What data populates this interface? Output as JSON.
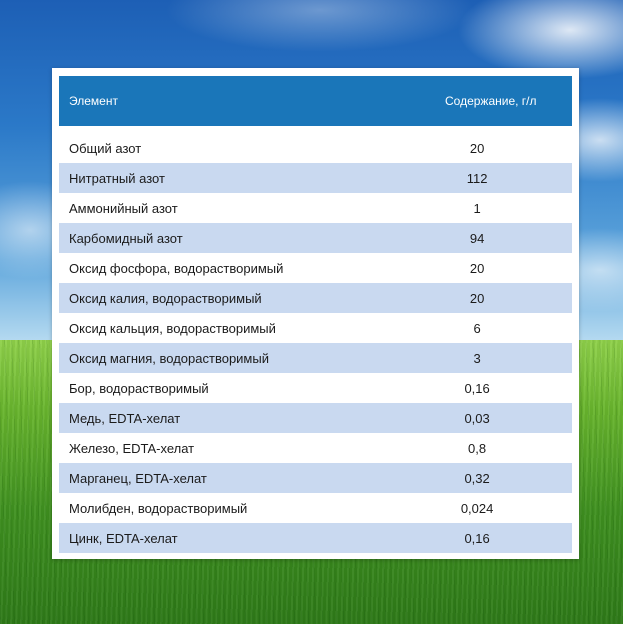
{
  "table": {
    "headers": {
      "element": "Элемент",
      "content": "Содержание, г/л"
    },
    "rows": [
      {
        "name": "Общий азот",
        "value": "20"
      },
      {
        "name": "Нитратный азот",
        "value": "112"
      },
      {
        "name": "Аммонийный азот",
        "value": "1"
      },
      {
        "name": "Карбомидный азот",
        "value": "94"
      },
      {
        "name": "Оксид фосфора, водорастворимый",
        "value": "20"
      },
      {
        "name": "Оксид калия, водорастворимый",
        "value": "20"
      },
      {
        "name": "Оксид кальция, водорастворимый",
        "value": "6"
      },
      {
        "name": "Оксид магния,  водорастворимый",
        "value": "3"
      },
      {
        "name": "Бор, водорастворимый",
        "value": "0,16"
      },
      {
        "name": "Медь, EDTA-хелат",
        "value": "0,03"
      },
      {
        "name": "Железо, EDTA-хелат",
        "value": "0,8"
      },
      {
        "name": "Марганец, EDTA-хелат",
        "value": "0,32"
      },
      {
        "name": "Молибден, водорастворимый",
        "value": "0,024"
      },
      {
        "name": "Цинк, EDTA-хелат",
        "value": "0,16"
      }
    ]
  },
  "colors": {
    "header_bg": "#1a76b9",
    "alt_row_bg": "#c9d9f0"
  }
}
